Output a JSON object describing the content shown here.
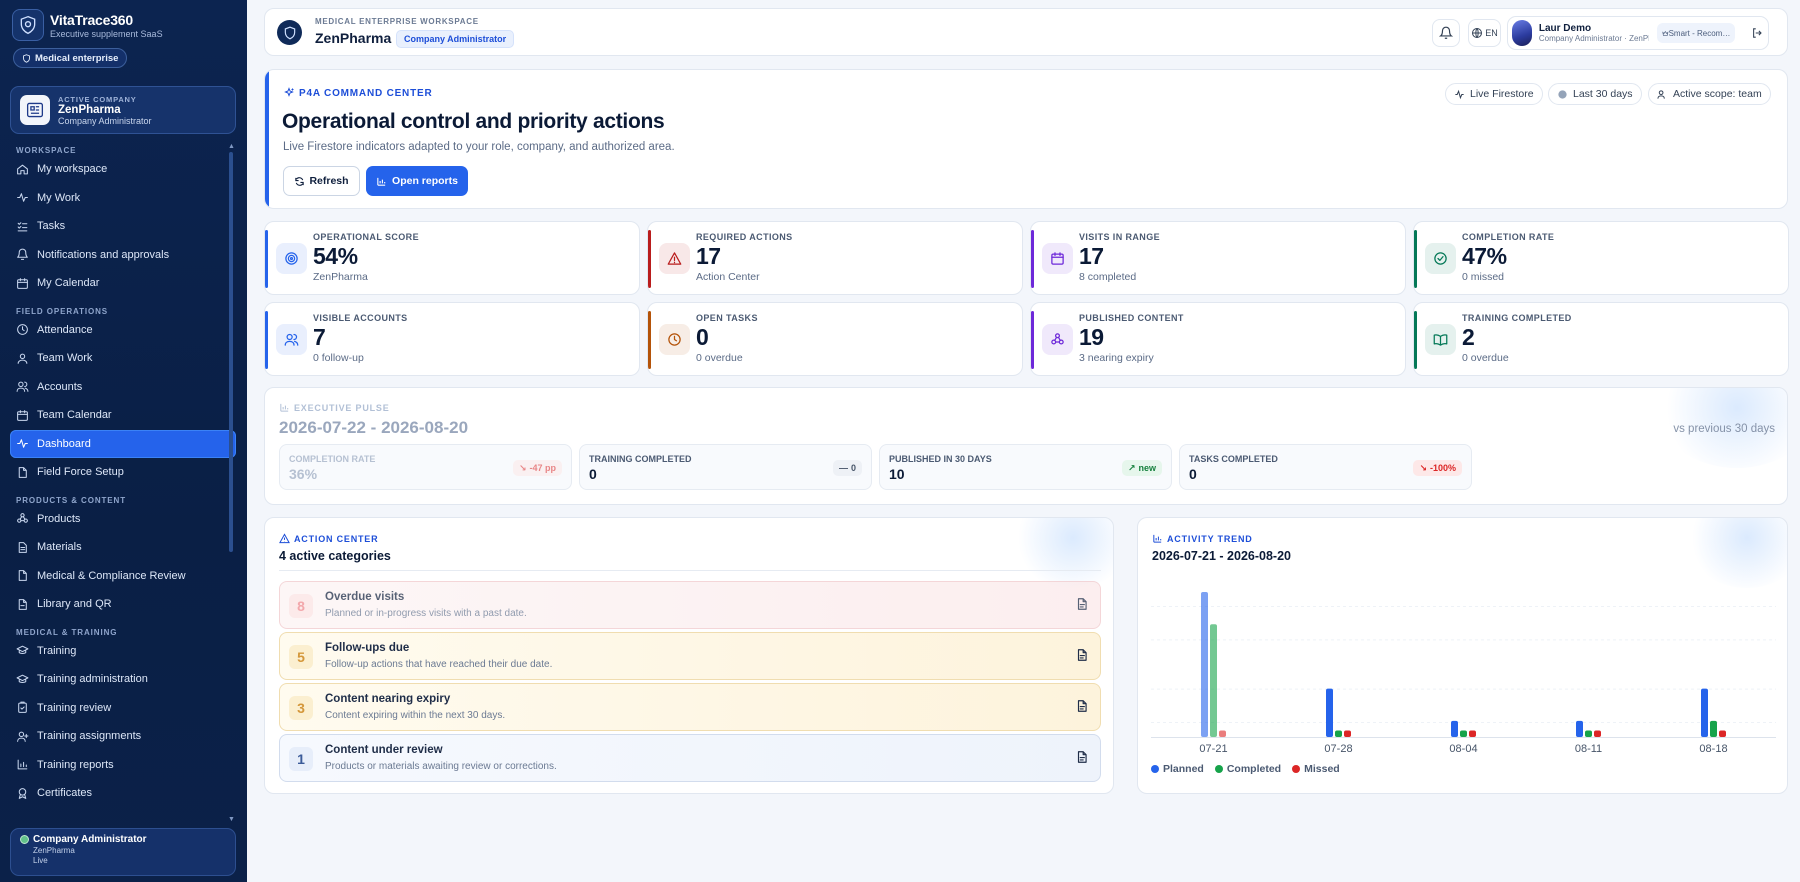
{
  "app": {
    "name": "VitaTrace360",
    "tagline": "Executive supplement SaaS",
    "tenant_badge": "Medical enterprise"
  },
  "sidebar": {
    "company": {
      "kicker": "ACTIVE COMPANY",
      "name": "ZenPharma",
      "role": "Company Administrator"
    },
    "sections": [
      {
        "title": "WORKSPACE",
        "items": [
          {
            "label": "My workspace",
            "icon": "home-icon"
          },
          {
            "label": "My Work",
            "icon": "activity-icon"
          },
          {
            "label": "Tasks",
            "icon": "checklist-icon"
          },
          {
            "label": "Notifications and approvals",
            "icon": "bell-icon"
          },
          {
            "label": "My Calendar",
            "icon": "calendar-icon"
          }
        ]
      },
      {
        "title": "FIELD OPERATIONS",
        "items": [
          {
            "label": "Attendance",
            "icon": "clock-icon"
          },
          {
            "label": "Team Work",
            "icon": "user-icon"
          },
          {
            "label": "Accounts",
            "icon": "users-icon"
          },
          {
            "label": "Team Calendar",
            "icon": "calendar-icon"
          },
          {
            "label": "Dashboard",
            "icon": "activity-icon",
            "active": true
          },
          {
            "label": "Field Force Setup",
            "icon": "file-icon"
          }
        ]
      },
      {
        "title": "PRODUCTS & CONTENT",
        "items": [
          {
            "label": "Products",
            "icon": "molecule-icon"
          },
          {
            "label": "Materials",
            "icon": "document-icon"
          },
          {
            "label": "Medical & Compliance Review",
            "icon": "file-icon"
          },
          {
            "label": "Library and QR",
            "icon": "link-icon"
          }
        ]
      },
      {
        "title": "MEDICAL & TRAINING",
        "items": [
          {
            "label": "Training",
            "icon": "graduation-cap-icon"
          },
          {
            "label": "Training administration",
            "icon": "graduation-cap-icon"
          },
          {
            "label": "Training review",
            "icon": "clipboard-check-icon"
          },
          {
            "label": "Training assignments",
            "icon": "user-plus-icon"
          },
          {
            "label": "Training reports",
            "icon": "bar-chart-icon"
          },
          {
            "label": "Certificates",
            "icon": "award-icon"
          }
        ]
      }
    ],
    "user": {
      "role": "Company Administrator",
      "company": "ZenPharma",
      "status": "Live"
    }
  },
  "header": {
    "kicker": "MEDICAL ENTERPRISE WORKSPACE",
    "title": "ZenPharma",
    "role_badge": "Company Administrator",
    "language": "EN",
    "user_name": "Laur Demo",
    "user_role": "Company Administrator · ZenPharma",
    "smart_label": "Smart - Recommended"
  },
  "command_center": {
    "kicker": "P4A COMMAND CENTER",
    "title": "Operational control and priority actions",
    "subtitle": "Live Firestore indicators adapted to your role, company, and authorized area.",
    "refresh_label": "Refresh",
    "reports_label": "Open reports",
    "chips": [
      "Live Firestore",
      "Last 30 days",
      "Active scope: team"
    ]
  },
  "kpis": [
    {
      "label": "OPERATIONAL SCORE",
      "value": "54%",
      "sub": "ZenPharma",
      "color": "#2563eb",
      "icon": "target-icon"
    },
    {
      "label": "REQUIRED ACTIONS",
      "value": "17",
      "sub": "Action Center",
      "color": "#b91c1c",
      "icon": "alert-triangle-icon"
    },
    {
      "label": "VISITS IN RANGE",
      "value": "17",
      "sub": "8 completed",
      "color": "#6d28d9",
      "icon": "calendar-icon"
    },
    {
      "label": "COMPLETION RATE",
      "value": "47%",
      "sub": "0 missed",
      "color": "#047857",
      "icon": "check-circle-icon"
    },
    {
      "label": "VISIBLE ACCOUNTS",
      "value": "7",
      "sub": "0 follow-up",
      "color": "#2563eb",
      "icon": "users-icon"
    },
    {
      "label": "OPEN TASKS",
      "value": "0",
      "sub": "0 overdue",
      "color": "#b45309",
      "icon": "clock-icon"
    },
    {
      "label": "PUBLISHED CONTENT",
      "value": "19",
      "sub": "3 nearing expiry",
      "color": "#6d28d9",
      "icon": "molecule-icon"
    },
    {
      "label": "TRAINING COMPLETED",
      "value": "2",
      "sub": "0 overdue",
      "color": "#047857",
      "icon": "book-open-icon"
    }
  ],
  "pulse": {
    "kicker": "EXECUTIVE PULSE",
    "range": "2026-07-22 - 2026-08-20",
    "vs": "vs previous 30 days",
    "cards": [
      {
        "label": "COMPLETION RATE",
        "value": "36%",
        "delta": "-47 pp",
        "trend": "down"
      },
      {
        "label": "TRAINING COMPLETED",
        "value": "0",
        "delta": "0",
        "trend": "flat"
      },
      {
        "label": "PUBLISHED IN 30 DAYS",
        "value": "10",
        "delta": "new",
        "trend": "up"
      },
      {
        "label": "TASKS COMPLETED",
        "value": "0",
        "delta": "-100%",
        "trend": "down"
      }
    ]
  },
  "action_center": {
    "kicker": "ACTION CENTER",
    "title": "4 active categories",
    "rows": [
      {
        "count": "8",
        "title": "Overdue visits",
        "desc": "Planned or in-progress visits with a past date.",
        "tone": "red"
      },
      {
        "count": "5",
        "title": "Follow-ups due",
        "desc": "Follow-up actions that have reached their due date.",
        "tone": "amber"
      },
      {
        "count": "3",
        "title": "Content nearing expiry",
        "desc": "Content expiring within the next 30 days.",
        "tone": "amber"
      },
      {
        "count": "1",
        "title": "Content under review",
        "desc": "Products or materials awaiting review or corrections.",
        "tone": "blue"
      }
    ]
  },
  "trend": {
    "kicker": "ACTIVITY TREND",
    "title": "2026-07-21 - 2026-08-20"
  },
  "chart_data": {
    "type": "bar",
    "categories": [
      "07-21",
      "07-28",
      "08-04",
      "08-11",
      "08-18"
    ],
    "series": [
      {
        "name": "Planned",
        "values": [
          9,
          3,
          1,
          1,
          3
        ],
        "color": "#2563eb"
      },
      {
        "name": "Completed",
        "values": [
          7,
          0.4,
          0.4,
          0.4,
          1
        ],
        "color": "#16a34a"
      },
      {
        "name": "Missed",
        "values": [
          0.4,
          0.4,
          0.4,
          0.4,
          0.4
        ],
        "color": "#dc2626"
      }
    ],
    "ylim": [
      0,
      9
    ],
    "grid": true,
    "legend": "bottom-left",
    "faded_first_group": true
  }
}
